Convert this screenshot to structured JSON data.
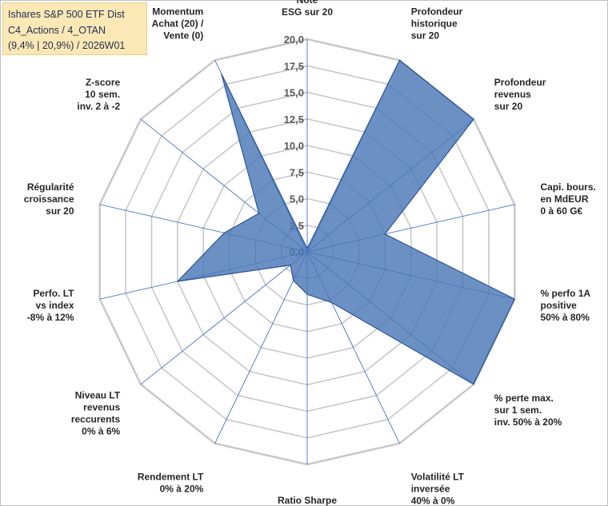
{
  "title_lines": [
    "Ishares S&P 500 ETF Dist",
    "C4_Actions / 4_OTAN",
    "(9,4% | 20,9%) / 2026W01"
  ],
  "colors": {
    "fill": "#4a77b6",
    "fill_stroke": "#2f5597",
    "grid": "#c8c8c8",
    "spoke": "#4472c4",
    "title_bg": "#fce8b5"
  },
  "chart_data": {
    "type": "radar",
    "title": "Ishares S&P 500 ETF Dist",
    "rmin": 0,
    "rmax": 20,
    "tick_step": 2.5,
    "tick_labels": [
      "0,0",
      "2,5",
      "5,0",
      "7,5",
      "10,0",
      "12,5",
      "15,0",
      "17,5",
      "20,0"
    ],
    "axes": [
      {
        "label": [
          "Note",
          "ESG sur 20"
        ],
        "value": 0.3
      },
      {
        "label": [
          "Profondeur",
          "historique",
          "sur 20"
        ],
        "value": 20
      },
      {
        "label": [
          "Profondeur",
          "revenus",
          "sur 20"
        ],
        "value": 20
      },
      {
        "label": [
          "Capi. bours.",
          "en MdEUR",
          "0 à 60 G€"
        ],
        "value": 7.5
      },
      {
        "label": [
          "% perfo 1A",
          "positive",
          "50% à 80%"
        ],
        "value": 20
      },
      {
        "label": [
          "% perte max.",
          "sur 1 sem.",
          "inv. 50% à 20%"
        ],
        "value": 20
      },
      {
        "label": [
          "Volatilité LT",
          "inversée",
          "40% à 0%"
        ],
        "value": 5.3
      },
      {
        "label": [
          "Ratio Sharpe",
          "0 à 1"
        ],
        "value": 4.0
      },
      {
        "label": [
          "Rendement LT",
          "0% à 20%"
        ],
        "value": 3.0
      },
      {
        "label": [
          "Niveau LT",
          "revenus",
          "reccurents",
          "0% à 6%"
        ],
        "value": 2.0
      },
      {
        "label": [
          "Perfo. LT",
          "vs index",
          "-8% à 12%"
        ],
        "value": 12.5
      },
      {
        "label": [
          "Régularité",
          "croissance",
          "sur 20"
        ],
        "value": 8.0
      },
      {
        "label": [
          "Z-score",
          "10 sem.",
          "inv. 2 à -2"
        ],
        "value": 5.8
      },
      {
        "label": [
          "Momentum",
          "Achat (20) /",
          "Vente (0)"
        ],
        "value": 18.6
      }
    ]
  }
}
